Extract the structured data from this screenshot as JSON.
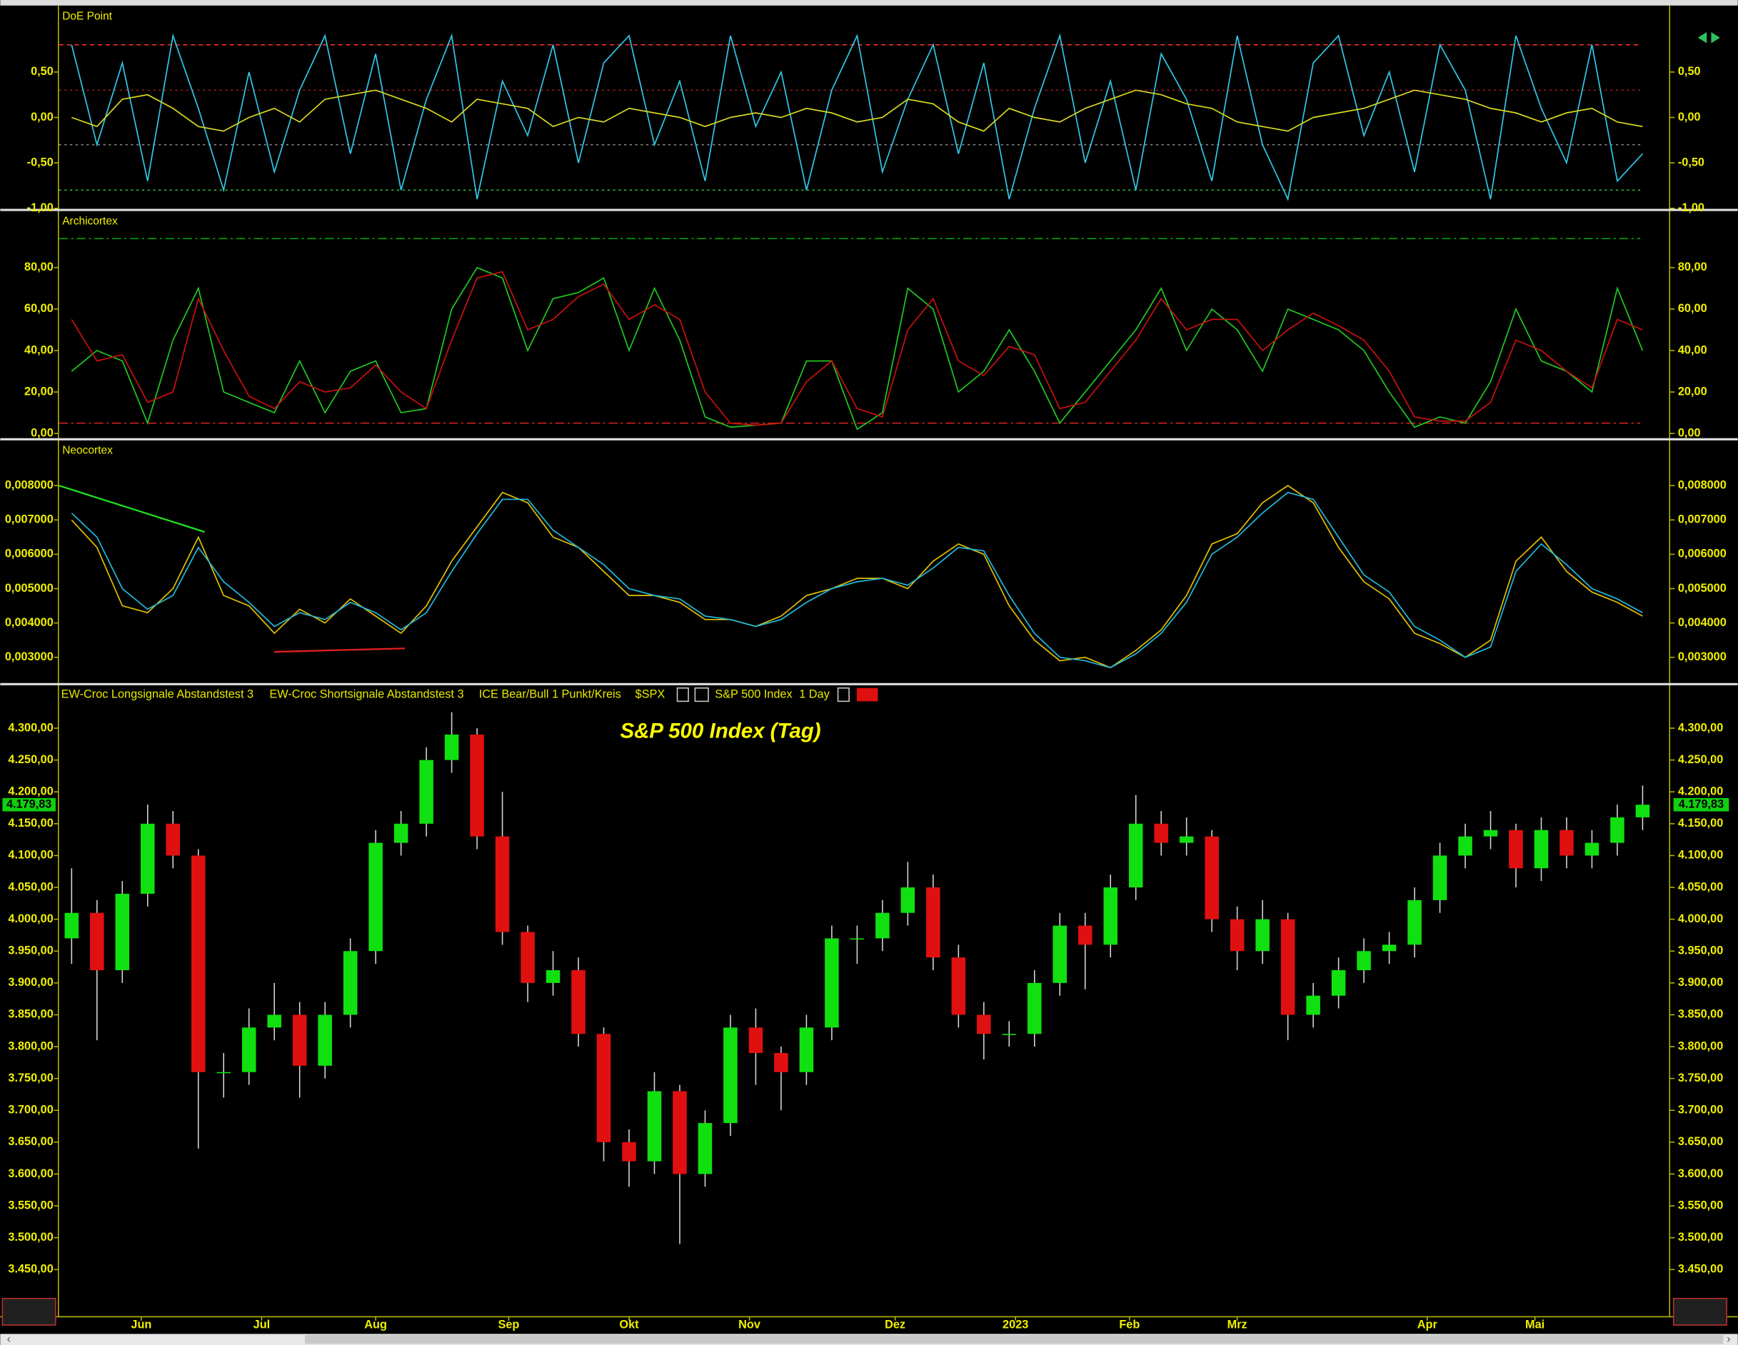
{
  "chart_data": [
    {
      "type": "line",
      "title": "DoE Point",
      "xlim": [
        -2,
        252
      ],
      "ylim": [
        -1.0,
        1.22
      ],
      "yticks": [
        {
          "value": 0.5,
          "label": "0,50"
        },
        {
          "value": 0,
          "label": "0,00"
        },
        {
          "value": -0.5,
          "label": "-0,50"
        },
        {
          "value": -1,
          "label": "-1,00"
        }
      ],
      "hlines": [
        {
          "value": 0.8,
          "color": "#ff3030",
          "dash": "4 3"
        },
        {
          "value": 0.3,
          "color": "#a02020",
          "dash": "2 3"
        },
        {
          "value": -0.3,
          "color": "#888888",
          "dash": "2 3"
        },
        {
          "value": -0.8,
          "color": "#30c030",
          "dash": "2 3"
        }
      ],
      "x": [
        0,
        4,
        8,
        12,
        16,
        20,
        24,
        28,
        32,
        36,
        40,
        44,
        48,
        52,
        56,
        60,
        64,
        68,
        72,
        76,
        80,
        84,
        88,
        92,
        96,
        100,
        104,
        108,
        112,
        116,
        120,
        124,
        128,
        132,
        136,
        140,
        144,
        148,
        152,
        156,
        160,
        164,
        168,
        172,
        176,
        180,
        184,
        188,
        192,
        196,
        200,
        204,
        208,
        212,
        216,
        220,
        224,
        228,
        232,
        236,
        240,
        244,
        248
      ],
      "series": [
        {
          "color": "#30c8e8",
          "values": [
            0.8,
            -0.3,
            0.6,
            -0.7,
            0.9,
            0.1,
            -0.8,
            0.5,
            -0.6,
            0.3,
            0.9,
            -0.4,
            0.7,
            -0.8,
            0.2,
            0.9,
            -0.9,
            0.4,
            -0.2,
            0.8,
            -0.5,
            0.6,
            0.9,
            -0.3,
            0.4,
            -0.7,
            0.9,
            -0.1,
            0.5,
            -0.8,
            0.3,
            0.9,
            -0.6,
            0.2,
            0.8,
            -0.4,
            0.6,
            -0.9,
            0.1,
            0.9,
            -0.5,
            0.4,
            -0.8,
            0.7,
            0.2,
            -0.7,
            0.9,
            -0.3,
            -0.9,
            0.6,
            0.9,
            -0.2,
            0.5,
            -0.6,
            0.8,
            0.3,
            -0.9,
            0.9,
            0.1,
            -0.5,
            0.8,
            -0.7,
            -0.4
          ]
        },
        {
          "color": "#d8d820",
          "values": [
            0.0,
            -0.1,
            0.2,
            0.25,
            0.1,
            -0.1,
            -0.15,
            0.0,
            0.1,
            -0.05,
            0.2,
            0.25,
            0.3,
            0.2,
            0.1,
            -0.05,
            0.2,
            0.15,
            0.1,
            -0.1,
            0.0,
            -0.05,
            0.1,
            0.05,
            0.0,
            -0.1,
            0.0,
            0.05,
            0.0,
            0.1,
            0.05,
            -0.05,
            0.0,
            0.2,
            0.15,
            -0.05,
            -0.15,
            0.1,
            0.0,
            -0.05,
            0.1,
            0.2,
            0.3,
            0.25,
            0.15,
            0.1,
            -0.05,
            -0.1,
            -0.15,
            0.0,
            0.05,
            0.1,
            0.2,
            0.3,
            0.25,
            0.2,
            0.1,
            0.05,
            -0.05,
            0.05,
            0.1,
            -0.05,
            -0.1
          ]
        }
      ]
    },
    {
      "type": "line",
      "title": "Archicortex",
      "xlim": [
        -2,
        252
      ],
      "ylim": [
        -2,
        107
      ],
      "yticks": [
        {
          "value": 0,
          "label": "0,00"
        },
        {
          "value": 20,
          "label": "20,00"
        },
        {
          "value": 40,
          "label": "40,00"
        },
        {
          "value": 60,
          "label": "60,00"
        },
        {
          "value": 80,
          "label": "80,00"
        }
      ],
      "hlines": [
        {
          "value": 94,
          "color": "#00a000",
          "dash": "8 3 2 3"
        },
        {
          "value": 5,
          "color": "#d02020",
          "dash": "8 3 2 3"
        }
      ],
      "x": [
        0,
        4,
        8,
        12,
        16,
        20,
        24,
        28,
        32,
        36,
        40,
        44,
        48,
        52,
        56,
        60,
        64,
        68,
        72,
        76,
        80,
        84,
        88,
        92,
        96,
        100,
        104,
        108,
        112,
        116,
        120,
        124,
        128,
        132,
        136,
        140,
        144,
        148,
        152,
        156,
        160,
        164,
        168,
        172,
        176,
        180,
        184,
        188,
        192,
        196,
        200,
        204,
        208,
        212,
        216,
        220,
        224,
        228,
        232,
        236,
        240,
        244,
        248
      ],
      "series": [
        {
          "color": "#20c820",
          "values": [
            30,
            40,
            35,
            5,
            45,
            70,
            20,
            15,
            10,
            35,
            10,
            30,
            35,
            10,
            12,
            60,
            80,
            75,
            40,
            65,
            68,
            75,
            40,
            70,
            45,
            8,
            3,
            4,
            5,
            35,
            35,
            2,
            10,
            70,
            60,
            20,
            30,
            50,
            30,
            5,
            20,
            35,
            50,
            70,
            40,
            60,
            50,
            30,
            60,
            55,
            50,
            40,
            20,
            3,
            8,
            5,
            25,
            60,
            35,
            30,
            20,
            70,
            40
          ]
        },
        {
          "color": "#c81010",
          "values": [
            55,
            35,
            38,
            15,
            20,
            65,
            40,
            18,
            12,
            25,
            20,
            22,
            33,
            20,
            12,
            45,
            75,
            78,
            50,
            55,
            66,
            72,
            55,
            62,
            55,
            20,
            5,
            4,
            5,
            25,
            35,
            12,
            8,
            50,
            65,
            35,
            28,
            42,
            38,
            12,
            15,
            30,
            45,
            65,
            50,
            55,
            55,
            40,
            50,
            58,
            52,
            45,
            30,
            8,
            6,
            6,
            15,
            45,
            40,
            30,
            22,
            55,
            50
          ]
        }
      ]
    },
    {
      "type": "line",
      "title": "Neocortex",
      "xlim": [
        -2,
        252
      ],
      "ylim": [
        0.0023,
        0.0093
      ],
      "yticks": [
        {
          "value": 0.003,
          "label": "0,003000"
        },
        {
          "value": 0.004,
          "label": "0,004000"
        },
        {
          "value": 0.005,
          "label": "0,005000"
        },
        {
          "value": 0.006,
          "label": "0,006000"
        },
        {
          "value": 0.007,
          "label": "0,007000"
        },
        {
          "value": 0.008,
          "label": "0,008000"
        }
      ],
      "trendlines": [
        {
          "color": "#20e020",
          "x": [
            -2,
            21
          ],
          "y": [
            0.008,
            0.00665
          ]
        },
        {
          "color": "#e02020",
          "x": [
            32,
            52.6
          ],
          "y": [
            0.00316,
            0.00326
          ]
        }
      ],
      "x": [
        0,
        4,
        8,
        12,
        16,
        20,
        24,
        28,
        32,
        36,
        40,
        44,
        48,
        52,
        56,
        60,
        64,
        68,
        72,
        76,
        80,
        84,
        88,
        92,
        96,
        100,
        104,
        108,
        112,
        116,
        120,
        124,
        128,
        132,
        136,
        140,
        144,
        148,
        152,
        156,
        160,
        164,
        168,
        172,
        176,
        180,
        184,
        188,
        192,
        196,
        200,
        204,
        208,
        212,
        216,
        220,
        224,
        228,
        232,
        236,
        240,
        244,
        248
      ],
      "series": [
        {
          "color": "#e0c000",
          "values": [
            0.007,
            0.0062,
            0.0045,
            0.0043,
            0.005,
            0.0065,
            0.0048,
            0.0045,
            0.0037,
            0.0044,
            0.004,
            0.0047,
            0.0042,
            0.0037,
            0.0045,
            0.0058,
            0.0068,
            0.0078,
            0.0075,
            0.0065,
            0.0062,
            0.0055,
            0.0048,
            0.0048,
            0.0046,
            0.0041,
            0.0041,
            0.0039,
            0.0042,
            0.0048,
            0.005,
            0.0053,
            0.0053,
            0.005,
            0.0058,
            0.0063,
            0.006,
            0.0045,
            0.0035,
            0.0029,
            0.003,
            0.0027,
            0.0032,
            0.0038,
            0.0048,
            0.0063,
            0.0066,
            0.0075,
            0.008,
            0.0075,
            0.0062,
            0.0052,
            0.0047,
            0.0037,
            0.0034,
            0.003,
            0.0035,
            0.0058,
            0.0065,
            0.0055,
            0.0049,
            0.0046,
            0.0042
          ]
        },
        {
          "color": "#20b8d8",
          "values": [
            0.0072,
            0.0065,
            0.005,
            0.0044,
            0.0048,
            0.0062,
            0.0052,
            0.0046,
            0.0039,
            0.0043,
            0.0041,
            0.0046,
            0.0043,
            0.0038,
            0.0043,
            0.0055,
            0.0066,
            0.0076,
            0.0076,
            0.0067,
            0.0062,
            0.0057,
            0.005,
            0.0048,
            0.0047,
            0.0042,
            0.0041,
            0.0039,
            0.0041,
            0.0046,
            0.005,
            0.0052,
            0.0053,
            0.0051,
            0.0056,
            0.0062,
            0.0061,
            0.0048,
            0.0037,
            0.003,
            0.0029,
            0.0027,
            0.0031,
            0.0037,
            0.0046,
            0.006,
            0.0065,
            0.0072,
            0.0078,
            0.0076,
            0.0065,
            0.0054,
            0.0049,
            0.0039,
            0.0035,
            0.003,
            0.0033,
            0.0055,
            0.0063,
            0.0057,
            0.005,
            0.0047,
            0.0043
          ]
        }
      ]
    },
    {
      "type": "candlestick",
      "title": "S&P 500 Index (Tag)",
      "header": [
        "EW-Croc Longsignale Abstandstest 3",
        "EW-Croc Shortsignale Abstandstest 3",
        "ICE Bear/Bull 1 Punkt/Kreis",
        "$SPX",
        "S&P 500 Index",
        "1 Day"
      ],
      "last_price": {
        "value": 4179.83,
        "label": "4.179,83"
      },
      "xlim": [
        -2,
        252
      ],
      "ylim": [
        3382,
        4330
      ],
      "xticks": [
        {
          "value": 11,
          "label": "Jun"
        },
        {
          "value": 30,
          "label": "Jul"
        },
        {
          "value": 48,
          "label": "Aug"
        },
        {
          "value": 69,
          "label": "Sep"
        },
        {
          "value": 88,
          "label": "Okt"
        },
        {
          "value": 107,
          "label": "Nov"
        },
        {
          "value": 130,
          "label": "Dez"
        },
        {
          "value": 149,
          "label": "2023"
        },
        {
          "value": 167,
          "label": "Feb"
        },
        {
          "value": 184,
          "label": "Mrz"
        },
        {
          "value": 214,
          "label": "Apr"
        },
        {
          "value": 231,
          "label": "Mai"
        }
      ],
      "yticks": [
        {
          "value": 3450,
          "label": "3.450,00"
        },
        {
          "value": 3500,
          "label": "3.500,00"
        },
        {
          "value": 3550,
          "label": "3.550,00"
        },
        {
          "value": 3600,
          "label": "3.600,00"
        },
        {
          "value": 3650,
          "label": "3.650,00"
        },
        {
          "value": 3700,
          "label": "3.700,00"
        },
        {
          "value": 3750,
          "label": "3.750,00"
        },
        {
          "value": 3800,
          "label": "3.800,00"
        },
        {
          "value": 3850,
          "label": "3.850,00"
        },
        {
          "value": 3900,
          "label": "3.900,00"
        },
        {
          "value": 3950,
          "label": "3.950,00"
        },
        {
          "value": 4000,
          "label": "4.000,00"
        },
        {
          "value": 4050,
          "label": "4.050,00"
        },
        {
          "value": 4100,
          "label": "4.100,00"
        },
        {
          "value": 4150,
          "label": "4.150,00"
        },
        {
          "value": 4200,
          "label": "4.200,00"
        },
        {
          "value": 4250,
          "label": "4.250,00"
        },
        {
          "value": 4300,
          "label": "4.300,00"
        }
      ],
      "up_color": "#10e010",
      "down_color": "#e01010",
      "x": [
        0,
        4,
        8,
        12,
        16,
        20,
        24,
        28,
        32,
        36,
        40,
        44,
        48,
        52,
        56,
        60,
        64,
        68,
        72,
        76,
        80,
        84,
        88,
        92,
        96,
        100,
        104,
        108,
        112,
        116,
        120,
        124,
        128,
        132,
        136,
        140,
        144,
        148,
        152,
        156,
        160,
        164,
        168,
        172,
        176,
        180,
        184,
        188,
        192,
        196,
        200,
        204,
        208,
        212,
        216,
        220,
        224,
        228,
        232,
        236,
        240,
        244,
        248
      ],
      "open": [
        3970,
        4010,
        3920,
        4040,
        4150,
        4100,
        3760,
        3760,
        3830,
        3850,
        3770,
        3850,
        3950,
        4120,
        4150,
        4250,
        4290,
        4130,
        3980,
        3900,
        3920,
        3820,
        3650,
        3620,
        3730,
        3600,
        3680,
        3830,
        3790,
        3760,
        3830,
        3970,
        3970,
        4010,
        4050,
        3940,
        3850,
        3820,
        3820,
        3900,
        3990,
        3960,
        4050,
        4150,
        4120,
        4130,
        4000,
        3950,
        4000,
        3850,
        3880,
        3920,
        3950,
        3960,
        4030,
        4100,
        4130,
        4140,
        4080,
        4140,
        4100,
        4120,
        4160
      ],
      "high": [
        4080,
        4030,
        4060,
        4180,
        4170,
        4110,
        3790,
        3860,
        3900,
        3870,
        3870,
        3970,
        4140,
        4170,
        4270,
        4325,
        4300,
        4200,
        3990,
        3950,
        3940,
        3830,
        3670,
        3760,
        3740,
        3700,
        3850,
        3860,
        3800,
        3850,
        3990,
        3990,
        4030,
        4090,
        4070,
        3960,
        3870,
        3840,
        3920,
        4010,
        4010,
        4070,
        4195,
        4170,
        4160,
        4140,
        4020,
        4030,
        4010,
        3900,
        3940,
        3970,
        3980,
        4050,
        4120,
        4150,
        4170,
        4150,
        4160,
        4160,
        4140,
        4180,
        4210
      ],
      "low": [
        3930,
        3810,
        3900,
        4020,
        4080,
        3640,
        3720,
        3740,
        3810,
        3720,
        3750,
        3830,
        3930,
        4100,
        4130,
        4230,
        4110,
        3960,
        3870,
        3880,
        3800,
        3620,
        3580,
        3600,
        3490,
        3580,
        3660,
        3740,
        3700,
        3740,
        3810,
        3930,
        3950,
        3990,
        3920,
        3830,
        3780,
        3800,
        3800,
        3880,
        3890,
        3940,
        4030,
        4100,
        4100,
        3980,
        3920,
        3930,
        3810,
        3830,
        3860,
        3900,
        3930,
        3940,
        4010,
        4080,
        4110,
        4050,
        4060,
        4080,
        4080,
        4100,
        4140
      ],
      "close": [
        4010,
        3920,
        4040,
        4150,
        4100,
        3760,
        3760,
        3830,
        3850,
        3770,
        3850,
        3950,
        4120,
        4150,
        4250,
        4290,
        4130,
        3980,
        3900,
        3920,
        3820,
        3650,
        3620,
        3730,
        3600,
        3680,
        3830,
        3790,
        3760,
        3830,
        3970,
        3970,
        4010,
        4050,
        3940,
        3850,
        3820,
        3820,
        3900,
        3990,
        3960,
        4050,
        4150,
        4120,
        4130,
        4000,
        3950,
        4000,
        3850,
        3880,
        3920,
        3950,
        3960,
        4030,
        4100,
        4130,
        4140,
        4080,
        4140,
        4100,
        4120,
        4160,
        4179.83
      ]
    }
  ]
}
